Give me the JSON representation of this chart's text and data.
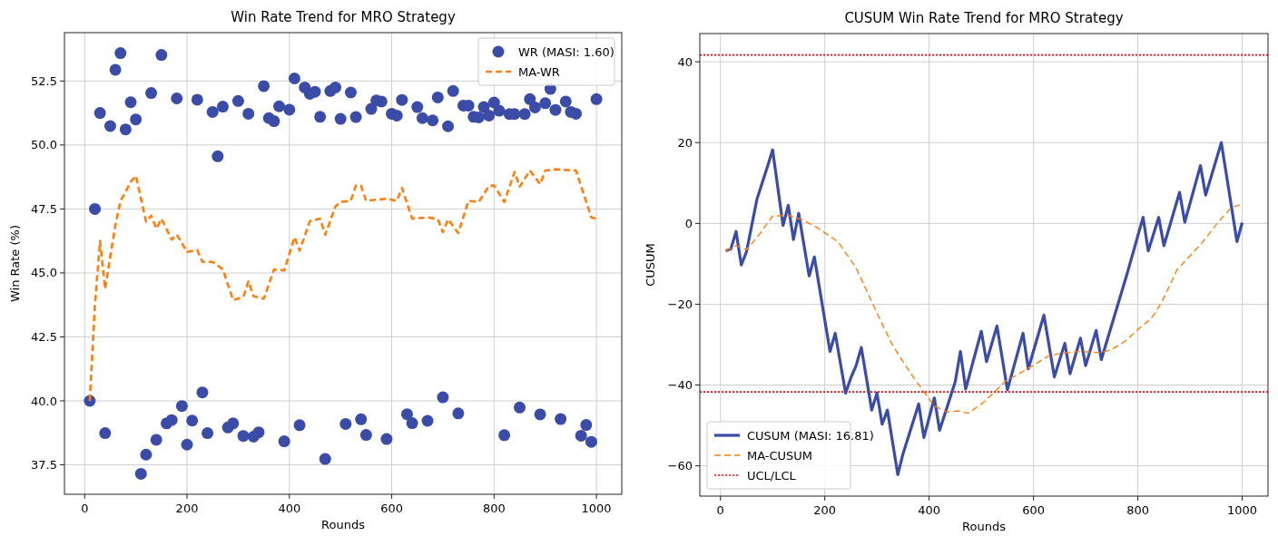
{
  "chart_data": [
    {
      "type": "scatter",
      "title": "Win Rate Trend for MRO Strategy",
      "xlabel": "Rounds",
      "ylabel": "Win Rate (%)",
      "xlim": [
        -39.5,
        1049.5
      ],
      "xticks": [
        0,
        200,
        400,
        600,
        800,
        1000
      ],
      "ylim": [
        36.35,
        54.39
      ],
      "yticks": [
        {
          "value": 37.5,
          "label": "37.5"
        },
        {
          "value": 40,
          "label": "40.0"
        },
        {
          "value": 42.5,
          "label": "42.5"
        },
        {
          "value": 45,
          "label": "45.0"
        },
        {
          "value": 47.5,
          "label": "47.5"
        },
        {
          "value": 50,
          "label": "50.0"
        },
        {
          "value": 52.5,
          "label": "52.5"
        }
      ],
      "grid": true,
      "legend": "top right",
      "series": [
        {
          "name": "WR (MASI: 1.60)",
          "color": "#3a4ca8",
          "marker": "circle",
          "x": [
            10,
            20,
            30,
            40,
            50,
            60,
            70,
            80,
            90,
            100,
            110,
            120,
            130,
            140,
            150,
            160,
            170,
            180,
            190,
            200,
            210,
            220,
            230,
            240,
            250,
            260,
            270,
            280,
            290,
            300,
            310,
            320,
            330,
            340,
            350,
            360,
            370,
            380,
            390,
            400,
            410,
            420,
            430,
            440,
            450,
            460,
            470,
            480,
            490,
            500,
            510,
            520,
            530,
            540,
            550,
            560,
            570,
            580,
            590,
            600,
            610,
            620,
            630,
            640,
            650,
            660,
            670,
            680,
            690,
            700,
            710,
            720,
            730,
            740,
            750,
            760,
            770,
            780,
            790,
            800,
            810,
            820,
            830,
            840,
            850,
            860,
            870,
            880,
            890,
            900,
            910,
            920,
            930,
            940,
            950,
            960,
            970,
            980,
            990,
            1000
          ],
          "values": [
            40.0,
            47.5,
            51.25,
            38.74,
            50.74,
            52.94,
            53.59,
            50.61,
            51.67,
            51.0,
            37.15,
            37.9,
            52.03,
            38.48,
            53.52,
            39.12,
            39.25,
            51.82,
            39.8,
            38.29,
            39.23,
            51.77,
            40.33,
            38.74,
            51.29,
            49.56,
            51.5,
            38.96,
            39.12,
            51.72,
            38.63,
            51.22,
            38.6,
            38.77,
            52.3,
            51.05,
            50.93,
            51.51,
            38.42,
            51.38,
            52.6,
            39.05,
            52.25,
            52.0,
            52.08,
            51.1,
            37.73,
            52.11,
            52.25,
            51.02,
            39.1,
            52.05,
            51.09,
            39.28,
            38.67,
            51.41,
            51.74,
            51.7,
            38.51,
            51.22,
            51.15,
            51.76,
            39.48,
            39.13,
            51.48,
            51.05,
            39.22,
            50.96,
            51.86,
            40.14,
            50.73,
            52.11,
            39.51,
            51.54,
            51.54,
            51.1,
            51.08,
            51.48,
            51.15,
            51.66,
            51.34,
            38.66,
            51.21,
            51.21,
            39.74,
            51.21,
            51.79,
            51.47,
            39.47,
            51.63,
            52.19,
            51.37,
            39.29,
            51.7,
            51.29,
            51.22,
            38.64,
            39.06,
            38.4,
            51.79
          ]
        },
        {
          "type": "line",
          "name": "MA-WR",
          "color": "#ff7f0e",
          "line_style": "dashed",
          "x": [
            10,
            20,
            30,
            40,
            50,
            60,
            70,
            80,
            90,
            100,
            120,
            130,
            140,
            150,
            170,
            180,
            200,
            220,
            230,
            250,
            270,
            290,
            310,
            320,
            330,
            350,
            370,
            390,
            410,
            420,
            440,
            460,
            470,
            490,
            500,
            520,
            530,
            540,
            550,
            560,
            590,
            610,
            620,
            640,
            670,
            690,
            700,
            710,
            730,
            750,
            770,
            790,
            800,
            820,
            840,
            850,
            870,
            890,
            900,
            920,
            960,
            990,
            1000
          ],
          "values": [
            40.0,
            43.75,
            46.25,
            44.37,
            45.65,
            46.86,
            47.82,
            48.17,
            48.56,
            48.8,
            47.0,
            47.24,
            46.73,
            47.12,
            46.3,
            46.5,
            45.82,
            45.9,
            45.43,
            45.43,
            45.14,
            43.94,
            44.06,
            44.67,
            44.09,
            43.99,
            45.14,
            45.1,
            46.4,
            45.87,
            47.02,
            47.12,
            46.49,
            47.6,
            47.77,
            47.82,
            48.42,
            48.4,
            47.82,
            47.84,
            47.9,
            47.82,
            48.32,
            47.12,
            47.17,
            47.1,
            46.59,
            47.1,
            46.56,
            47.82,
            47.77,
            48.4,
            48.42,
            47.77,
            48.95,
            48.37,
            49.0,
            48.47,
            49.0,
            49.05,
            49.0,
            47.17,
            47.12
          ]
        }
      ]
    },
    {
      "type": "line",
      "title": "CUSUM Win Rate Trend for MRO Strategy",
      "xlabel": "Rounds",
      "ylabel": "CUSUM",
      "xlim": [
        -39.5,
        1049.5
      ],
      "xticks": [
        0,
        200,
        400,
        600,
        800,
        1000
      ],
      "ylim": [
        -67.5,
        47
      ],
      "yticks": [
        {
          "value": -60,
          "label": "−60"
        },
        {
          "value": -40,
          "label": "−40"
        },
        {
          "value": -20,
          "label": "−20"
        },
        0,
        20,
        40
      ],
      "grid": true,
      "legend": "bottom left",
      "series": [
        {
          "name": "CUSUM (MASI: 16.81)",
          "color": "#3a4ca8",
          "line_style": "solid",
          "x": [
            10,
            20,
            30,
            40,
            50,
            70,
            80,
            90,
            100,
            120,
            130,
            140,
            150,
            170,
            180,
            210,
            220,
            240,
            250,
            260,
            270,
            290,
            300,
            310,
            320,
            340,
            350,
            380,
            390,
            410,
            420,
            450,
            460,
            470,
            500,
            510,
            530,
            550,
            580,
            590,
            620,
            640,
            660,
            670,
            690,
            700,
            720,
            730,
            780,
            810,
            820,
            840,
            850,
            880,
            890,
            920,
            930,
            960,
            990,
            1000
          ],
          "values": [
            -6.8,
            -6.3,
            -2.0,
            -10.3,
            -7.0,
            6.0,
            10,
            14,
            18.2,
            -0.5,
            4.5,
            -4.0,
            2.5,
            -13.0,
            -8.3,
            -31.7,
            -27.2,
            -42.0,
            -38.2,
            -35.2,
            -30.7,
            -46.2,
            -42.0,
            -49.7,
            -46.2,
            -62.2,
            -57.0,
            -44.7,
            -53.0,
            -43.2,
            -51.2,
            -39.2,
            -31.7,
            -41.0,
            -26.7,
            -34.2,
            -25.4,
            -41.2,
            -27.2,
            -36.0,
            -22.7,
            -38.0,
            -29.7,
            -37.2,
            -28.4,
            -35.2,
            -26.5,
            -33.7,
            -12.2,
            1.5,
            -6.8,
            1.5,
            -5.5,
            7.7,
            0.3,
            14.3,
            7.0,
            20.0,
            -4.5,
            0.2
          ]
        },
        {
          "name": "MA-CUSUM",
          "color": "#ff7f0e",
          "line_style": "dashed",
          "x": [
            10,
            30,
            50,
            70,
            100,
            130,
            155,
            185,
            225,
            260,
            300,
            330,
            365,
            390,
            410,
            435,
            455,
            475,
            505,
            525,
            545,
            575,
            605,
            630,
            660,
            690,
            730,
            750,
            775,
            805,
            825,
            845,
            875,
            925,
            955,
            980,
            1000
          ],
          "values": [
            -6.8,
            -5.5,
            -6.5,
            -3.5,
            1.8,
            2.0,
            1.0,
            -1.0,
            -4.5,
            -11,
            -22.2,
            -30.2,
            -37.2,
            -41.7,
            -45.2,
            -46.7,
            -46.4,
            -47.0,
            -44.2,
            -41.7,
            -39.2,
            -37.0,
            -34.7,
            -32.7,
            -32.0,
            -31.7,
            -32.0,
            -31.2,
            -29.2,
            -25.7,
            -23.7,
            -19.7,
            -11.5,
            -4.5,
            0.5,
            4.0,
            4.7
          ]
        }
      ],
      "ref_lines": [
        {
          "axis": "y",
          "value": 41.7,
          "label": "UCL/LCL",
          "color": "#ff0000",
          "line_style": "dotted"
        },
        {
          "axis": "y",
          "value": -41.7,
          "color": "#ff0000",
          "line_style": "dotted"
        }
      ]
    }
  ]
}
